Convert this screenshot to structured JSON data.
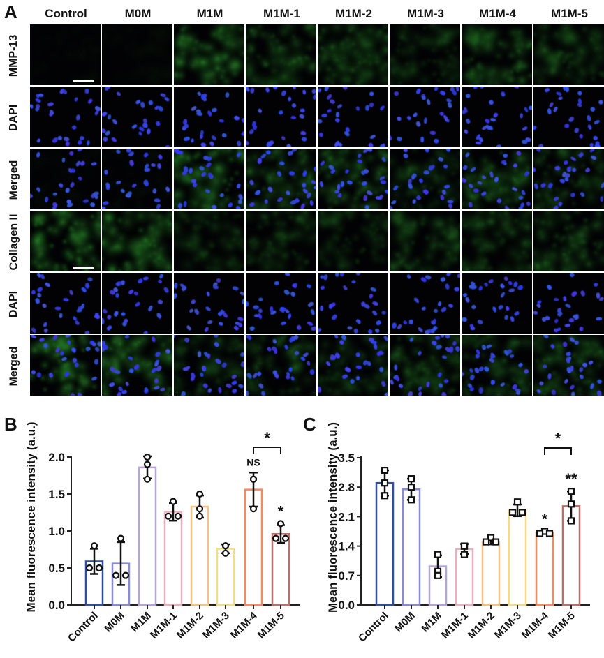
{
  "panel_a": {
    "letter": "A",
    "columns": [
      "Control",
      "M0M",
      "M1M",
      "M1M-1",
      "M1M-2",
      "M1M-3",
      "M1M-4",
      "M1M-5"
    ],
    "rows": [
      {
        "label": "MMP-13",
        "channel": "green",
        "intensity": [
          0.05,
          0.06,
          0.75,
          0.55,
          0.6,
          0.35,
          0.6,
          0.45
        ]
      },
      {
        "label": "DAPI",
        "channel": "blue"
      },
      {
        "label": "Merged",
        "channel": "merged",
        "intensity": [
          0.05,
          0.06,
          0.75,
          0.55,
          0.6,
          0.35,
          0.6,
          0.45
        ]
      },
      {
        "label": "Collagen II",
        "channel": "green",
        "intensity": [
          0.85,
          0.75,
          0.35,
          0.4,
          0.35,
          0.5,
          0.45,
          0.55
        ]
      },
      {
        "label": "DAPI",
        "channel": "blue"
      },
      {
        "label": "Merged",
        "channel": "merged",
        "intensity": [
          0.85,
          0.75,
          0.35,
          0.4,
          0.35,
          0.5,
          0.45,
          0.55
        ]
      }
    ]
  },
  "chart_data": [
    {
      "panel": "B",
      "type": "bar",
      "categories": [
        "Control",
        "M0M",
        "M1M",
        "M1M-1",
        "M1M-2",
        "M1M-3",
        "M1M-4",
        "M1M-5"
      ],
      "values": [
        0.59,
        0.56,
        1.86,
        1.26,
        1.33,
        0.76,
        1.56,
        0.96
      ],
      "points": [
        [
          0.8,
          0.5,
          0.5
        ],
        [
          0.9,
          0.4,
          0.4
        ],
        [
          2.0,
          1.9,
          1.7
        ],
        [
          1.4,
          1.2,
          1.2
        ],
        [
          1.5,
          1.3,
          1.2
        ],
        [
          0.8,
          0.8,
          0.7
        ],
        [
          1.7,
          1.7,
          1.3
        ],
        [
          1.1,
          0.9,
          0.9
        ]
      ],
      "errors": [
        0.17,
        0.29,
        0.15,
        0.12,
        0.15,
        0.06,
        0.23,
        0.12
      ],
      "colors": [
        "#2f4f9e",
        "#8a8ad0",
        "#b7a3dc",
        "#e8afbd",
        "#f8c184",
        "#f5dc84",
        "#f28a62",
        "#b8716a"
      ],
      "marker": "circle",
      "ylabel": "Mean fluorescence intensity (a.u.)",
      "ylim": [
        0,
        2.0
      ],
      "yticks": [
        "0.0",
        "0.5",
        "1.0",
        "1.5",
        "2.0"
      ],
      "annotations": [
        {
          "category": "M1M-4",
          "text": "NS"
        },
        {
          "category": "M1M-5",
          "text": "*"
        }
      ],
      "bracket": {
        "from": "M1M-4",
        "to": "M1M-5",
        "text": "*"
      }
    },
    {
      "panel": "C",
      "type": "bar",
      "categories": [
        "Control",
        "M0M",
        "M1M",
        "M1M-1",
        "M1M-2",
        "M1M-3",
        "M1M-4",
        "M1M-5"
      ],
      "values": [
        2.9,
        2.75,
        0.92,
        1.33,
        1.5,
        2.25,
        1.72,
        2.35
      ],
      "points": [
        [
          3.2,
          2.9,
          2.6
        ],
        [
          3.0,
          2.8,
          2.5
        ],
        [
          1.2,
          0.8,
          0.7
        ],
        [
          1.4,
          1.4,
          1.2
        ],
        [
          1.6,
          1.5,
          1.5
        ],
        [
          2.45,
          2.2,
          2.2
        ],
        [
          1.75,
          1.7,
          1.7
        ],
        [
          2.7,
          2.4,
          2.0
        ]
      ],
      "errors": [
        0.3,
        0.25,
        0.26,
        0.12,
        0.06,
        0.14,
        0.03,
        0.35
      ],
      "colors": [
        "#2f4f9e",
        "#8a8ad0",
        "#b7a3dc",
        "#e8afbd",
        "#f8c184",
        "#f5dc84",
        "#f28a62",
        "#b8716a"
      ],
      "marker": "square",
      "ylabel": "Mean fluorescence intensity (a.u.)",
      "ylim": [
        0,
        3.5
      ],
      "yticks": [
        "0.0",
        "0.7",
        "1.4",
        "2.1",
        "2.8",
        "3.5"
      ],
      "annotations": [
        {
          "category": "M1M-4",
          "text": "*"
        },
        {
          "category": "M1M-5",
          "text": "**"
        }
      ],
      "bracket": {
        "from": "M1M-4",
        "to": "M1M-5",
        "text": "*"
      }
    }
  ]
}
